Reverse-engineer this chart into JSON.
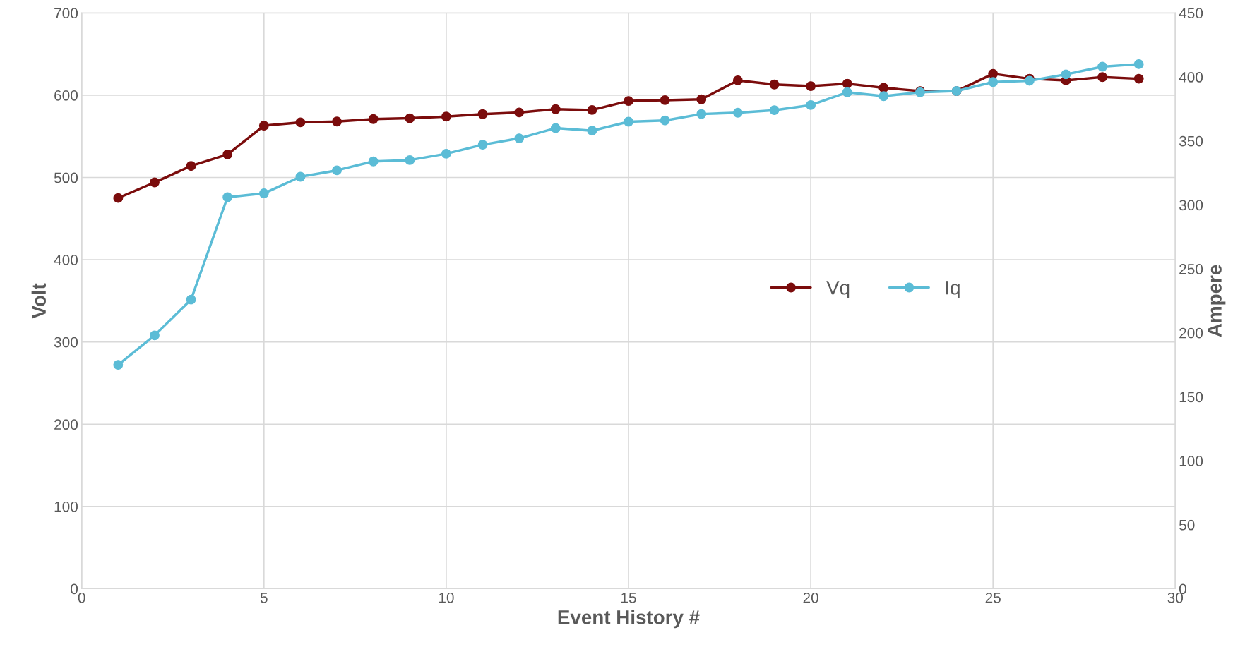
{
  "chart_data": {
    "type": "line",
    "xlabel": "Event History #",
    "ylabel": "Volt",
    "y2label": "Ampere",
    "x": [
      1,
      2,
      3,
      4,
      5,
      6,
      7,
      8,
      9,
      10,
      11,
      12,
      13,
      14,
      15,
      16,
      17,
      18,
      19,
      20,
      21,
      22,
      23,
      24,
      25,
      26,
      27,
      28,
      29
    ],
    "series": [
      {
        "name": "Vq",
        "color": "#7b0c0c",
        "values": [
          475,
          494,
          514,
          528,
          563,
          567,
          568,
          571,
          572,
          574,
          577,
          579,
          583,
          582,
          593,
          594,
          595,
          618,
          613,
          611,
          614,
          609,
          605,
          605,
          626,
          620,
          618,
          622,
          620
        ]
      },
      {
        "name": "Iq",
        "color": "#5bbcd6",
        "axis": "y2",
        "values": [
          175,
          198,
          226,
          306,
          309,
          322,
          327,
          334,
          335,
          340,
          347,
          352,
          360,
          358,
          365,
          366,
          371,
          372,
          374,
          378,
          388,
          385,
          388,
          389,
          396,
          397,
          402,
          408,
          410
        ]
      }
    ],
    "xlim": [
      0,
      30
    ],
    "xticks": [
      0,
      5,
      10,
      15,
      20,
      25,
      30
    ],
    "ylim": [
      0,
      700
    ],
    "yticks": [
      0,
      100,
      200,
      300,
      400,
      500,
      600,
      700
    ],
    "y2lim": [
      0,
      450
    ],
    "y2ticks": [
      0,
      50,
      100,
      150,
      200,
      250,
      300,
      350,
      400,
      450
    ],
    "grid": true,
    "legend": "right",
    "marker": "circle",
    "line_style": "solid"
  }
}
